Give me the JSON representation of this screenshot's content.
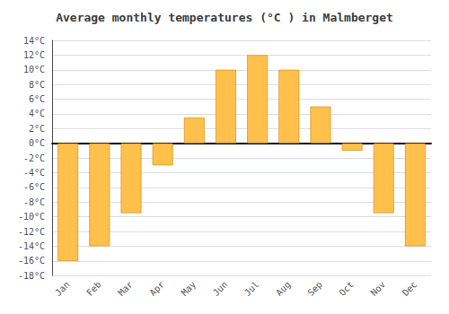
{
  "chart_data": {
    "type": "bar",
    "title": "Average monthly temperatures (°C ) in Malmberget",
    "categories": [
      "Jan",
      "Feb",
      "Mar",
      "Apr",
      "May",
      "Jun",
      "Jul",
      "Aug",
      "Sep",
      "Oct",
      "Nov",
      "Dec"
    ],
    "values": [
      -16,
      -14,
      -9.5,
      -3,
      3.5,
      10,
      12,
      10,
      5,
      -1,
      -9.5,
      -14
    ],
    "color": "#FFC04C",
    "ylim": [
      -18,
      14
    ],
    "yticks": [
      {
        "value": -18,
        "label": "-18°C"
      },
      {
        "value": -16,
        "label": "-16°C"
      },
      {
        "value": -14,
        "label": "-14°C"
      },
      {
        "value": -12,
        "label": "-12°C"
      },
      {
        "value": -10,
        "label": "-10°C"
      },
      {
        "value": -8,
        "label": "-8°C"
      },
      {
        "value": -6,
        "label": "-6°C"
      },
      {
        "value": -4,
        "label": "-4°C"
      },
      {
        "value": -2,
        "label": "-2°C"
      },
      {
        "value": 0,
        "label": "0°C"
      },
      {
        "value": 2,
        "label": "2°C"
      },
      {
        "value": 4,
        "label": "4°C"
      },
      {
        "value": 6,
        "label": "6°C"
      },
      {
        "value": 8,
        "label": "8°C"
      },
      {
        "value": 10,
        "label": "10°C"
      },
      {
        "value": 12,
        "label": "12°C"
      },
      {
        "value": 14,
        "label": "14°C"
      }
    ],
    "grid": true
  }
}
